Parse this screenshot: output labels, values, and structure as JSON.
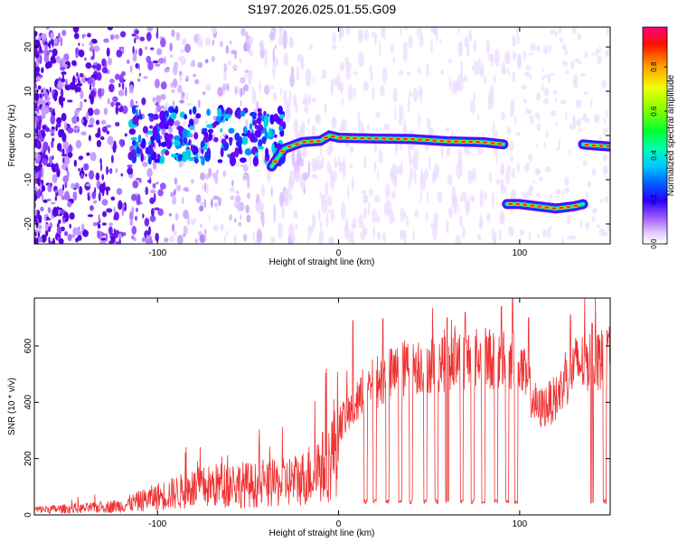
{
  "title": "S197.2026.025.01.55.G09",
  "chart_data": [
    {
      "type": "heatmap",
      "title": "S197.2026.025.01.55.G09",
      "xlabel": "Height of straight line (km)",
      "ylabel": "Frequency (Hz)",
      "xlim": [
        -168,
        150
      ],
      "ylim": [
        -24.5,
        24.5
      ],
      "xticks": [
        -100,
        0,
        100
      ],
      "xtick_labels": [
        "-100",
        "0",
        "100"
      ],
      "yticks": [
        -20,
        -10,
        0,
        10,
        20
      ],
      "ytick_labels": [
        "-20",
        "-10",
        "0",
        "10",
        "20"
      ],
      "grid": false,
      "colorbar": {
        "label": "Normalized spectral amplitude",
        "range": [
          0,
          0.98
        ],
        "ticks": [
          0,
          0.2,
          0.4,
          0.6,
          0.8
        ],
        "tick_labels": [
          "0.0",
          "0.2",
          "0.4",
          "0.6",
          "0.8"
        ],
        "colormap": [
          "#ffffff",
          "#cc99ff",
          "#5a00ff",
          "#0000ff",
          "#00a0ff",
          "#00ffe0",
          "#00ff40",
          "#aaff00",
          "#ffee00",
          "#ff8000",
          "#ff0000",
          "#ff0080"
        ]
      },
      "ridge": [
        {
          "x": [
            -37,
            -30,
            -20,
            -10,
            -5,
            0,
            10,
            20,
            40,
            60,
            80,
            91
          ],
          "freq": [
            -7,
            -3,
            -1.5,
            -1.2,
            0,
            -0.5,
            -0.6,
            -0.7,
            -0.8,
            -1.3,
            -1.5,
            -2
          ],
          "peak_amplitude": 0.95
        },
        {
          "x": [
            93,
            100,
            110,
            120,
            130,
            135
          ],
          "freq": [
            -15.5,
            -15.5,
            -16,
            -16.5,
            -16,
            -15.5
          ],
          "peak_amplitude": 0.95
        },
        {
          "x": [
            135,
            140,
            150
          ],
          "freq": [
            -2,
            -2.2,
            -2.5
          ],
          "peak_amplitude": 0.9
        }
      ]
    },
    {
      "type": "line",
      "xlabel": "Height of straight line (km)",
      "ylabel": "SNR (10 * v/v)",
      "xlim": [
        -168,
        150
      ],
      "ylim": [
        0,
        770
      ],
      "xticks": [
        -100,
        0,
        100
      ],
      "xtick_labels": [
        "-100",
        "0",
        "100"
      ],
      "yticks": [
        0,
        200,
        400,
        600
      ],
      "ytick_labels": [
        "0",
        "200",
        "400",
        "600"
      ],
      "grid": false,
      "series": [
        {
          "name": "SNR",
          "color": "#ee3333",
          "envelope_x": [
            -168,
            -140,
            -120,
            -100,
            -80,
            -60,
            -40,
            -20,
            -5,
            0,
            10,
            20,
            40,
            60,
            80,
            99,
            110,
            120,
            130,
            140,
            150
          ],
          "envelope_y": [
            20,
            25,
            35,
            70,
            100,
            120,
            110,
            140,
            200,
            330,
            400,
            480,
            540,
            560,
            570,
            560,
            380,
            420,
            540,
            560,
            570
          ],
          "dropouts_x": [
            15,
            20,
            27,
            34,
            40,
            48,
            54,
            60,
            68,
            74,
            80,
            87,
            93,
            98,
            140,
            147
          ],
          "dropout_level": 40,
          "spikes": [
            [
              8,
              690
            ],
            [
              60,
              700
            ],
            [
              70,
              720
            ],
            [
              90,
              740
            ],
            [
              96,
              770
            ],
            [
              105,
              700
            ],
            [
              128,
              710
            ],
            [
              140,
              680
            ]
          ]
        }
      ]
    }
  ]
}
